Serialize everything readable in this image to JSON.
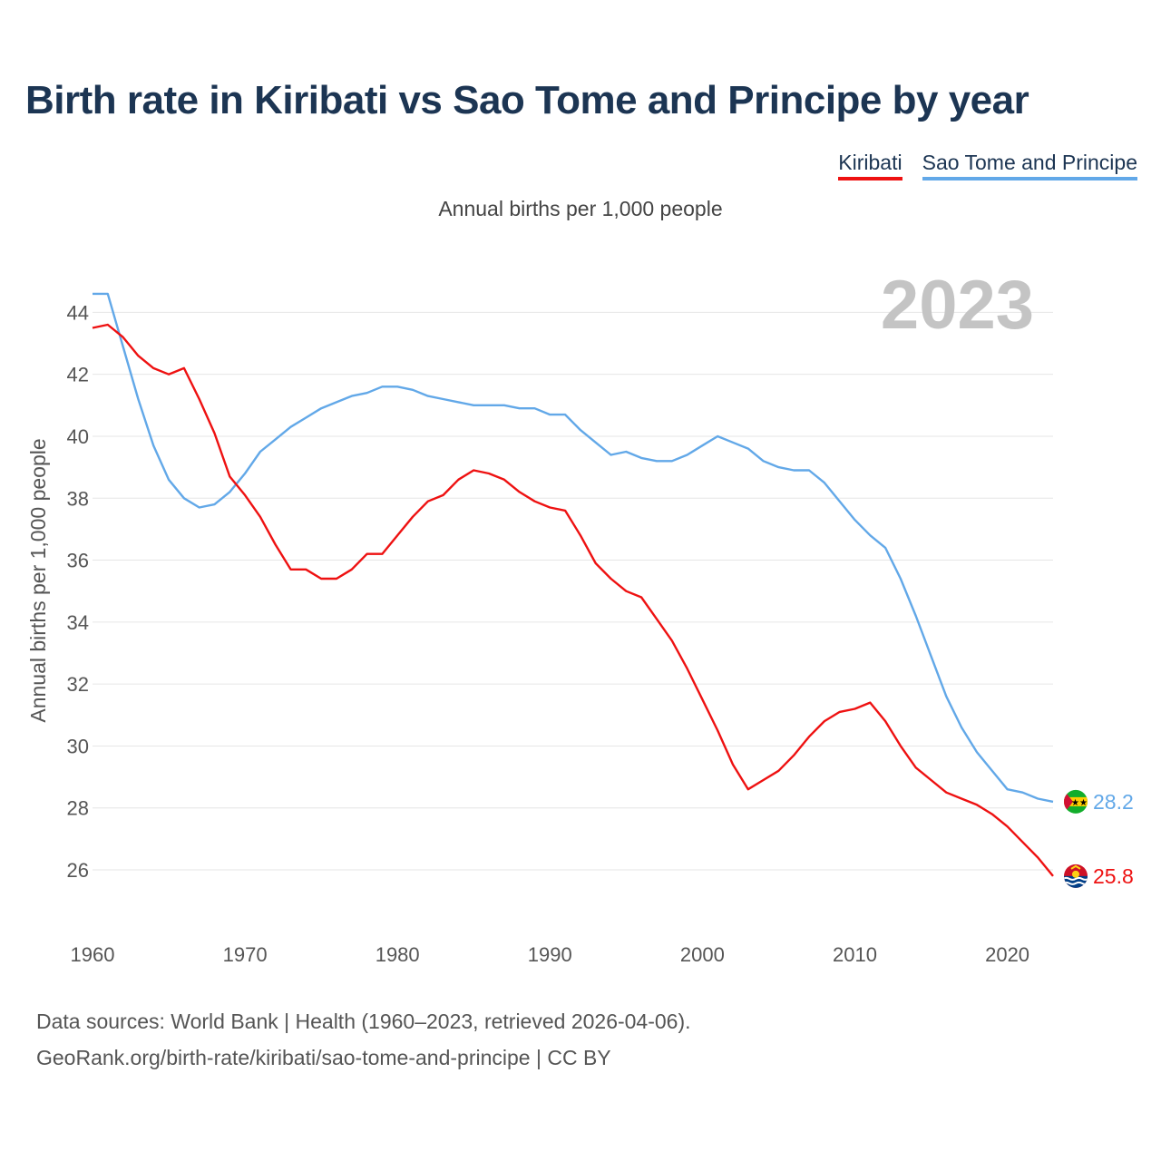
{
  "chart_data": {
    "type": "line",
    "title": "Birth rate in Kiribati vs Sao Tome and Principe by year",
    "subtitle": "Annual births per 1,000 people",
    "ylabel": "Annual births per 1,000 people",
    "xlabel": "",
    "current_year": "2023",
    "xlim": [
      1960,
      2023
    ],
    "ylim": [
      24.8,
      45.3
    ],
    "x_ticks": [
      1960,
      1970,
      1980,
      1990,
      2000,
      2010,
      2020
    ],
    "y_ticks": [
      26,
      28,
      30,
      32,
      34,
      36,
      38,
      40,
      42,
      44
    ],
    "legend_position": "top-right",
    "x": [
      1960,
      1961,
      1962,
      1963,
      1964,
      1965,
      1966,
      1967,
      1968,
      1969,
      1970,
      1971,
      1972,
      1973,
      1974,
      1975,
      1976,
      1977,
      1978,
      1979,
      1980,
      1981,
      1982,
      1983,
      1984,
      1985,
      1986,
      1987,
      1988,
      1989,
      1990,
      1991,
      1992,
      1993,
      1994,
      1995,
      1996,
      1997,
      1998,
      1999,
      2000,
      2001,
      2002,
      2003,
      2004,
      2005,
      2006,
      2007,
      2008,
      2009,
      2010,
      2011,
      2012,
      2013,
      2014,
      2015,
      2016,
      2017,
      2018,
      2019,
      2020,
      2021,
      2022,
      2023
    ],
    "series": [
      {
        "name": "Kiribati",
        "color": "#ee1111",
        "end_label": "25.8",
        "flag": "kiribati-flag",
        "values": [
          43.5,
          43.6,
          43.2,
          42.6,
          42.2,
          42.0,
          42.2,
          41.2,
          40.1,
          38.7,
          38.1,
          37.4,
          36.5,
          35.7,
          35.7,
          35.4,
          35.4,
          35.7,
          36.2,
          36.2,
          36.8,
          37.4,
          37.9,
          38.1,
          38.6,
          38.9,
          38.8,
          38.6,
          38.2,
          37.9,
          37.7,
          37.6,
          36.8,
          35.9,
          35.4,
          35.0,
          34.8,
          34.1,
          33.4,
          32.5,
          31.5,
          30.5,
          29.4,
          28.6,
          28.9,
          29.2,
          29.7,
          30.3,
          30.8,
          31.1,
          31.2,
          31.4,
          30.8,
          30.0,
          29.3,
          28.9,
          28.5,
          28.3,
          28.1,
          27.8,
          27.4,
          26.9,
          26.4,
          25.8
        ]
      },
      {
        "name": "Sao Tome and Principe",
        "color": "#62a8e8",
        "end_label": "28.2",
        "flag": "sao-tome-flag",
        "values": [
          44.6,
          44.6,
          42.9,
          41.2,
          39.7,
          38.6,
          38.0,
          37.7,
          37.8,
          38.2,
          38.8,
          39.5,
          39.9,
          40.3,
          40.6,
          40.9,
          41.1,
          41.3,
          41.4,
          41.6,
          41.6,
          41.5,
          41.3,
          41.2,
          41.1,
          41.0,
          41.0,
          41.0,
          40.9,
          40.9,
          40.7,
          40.7,
          40.2,
          39.8,
          39.4,
          39.5,
          39.3,
          39.2,
          39.2,
          39.4,
          39.7,
          40.0,
          39.8,
          39.6,
          39.2,
          39.0,
          38.9,
          38.9,
          38.5,
          37.9,
          37.3,
          36.8,
          36.4,
          35.4,
          34.2,
          32.9,
          31.6,
          30.6,
          29.8,
          29.2,
          28.6,
          28.5,
          28.3,
          28.2
        ]
      }
    ]
  },
  "footer": {
    "source_line1": "Data sources: World Bank | Health (1960–2023, retrieved 2026-04-06).",
    "source_line2": "GeoRank.org/birth-rate/kiribati/sao-tome-and-principe | CC BY"
  }
}
